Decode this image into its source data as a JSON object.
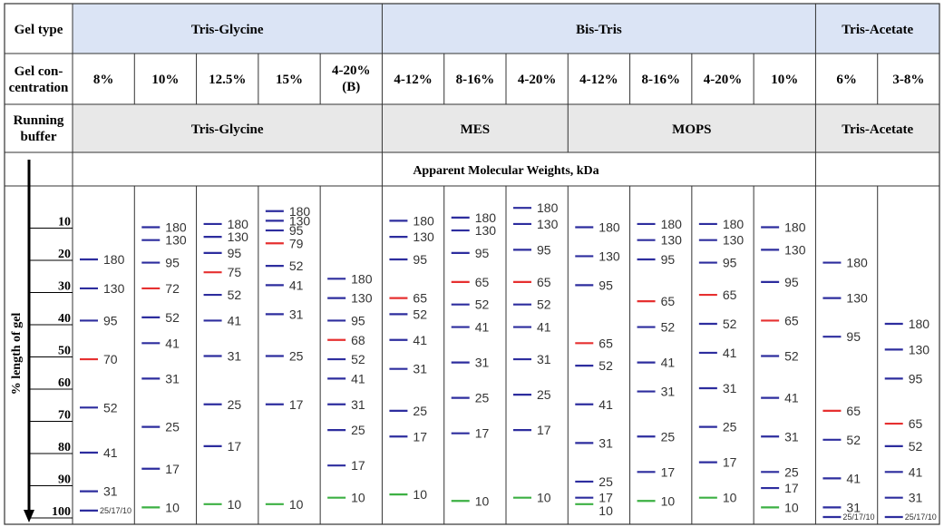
{
  "header": {
    "row_labels": {
      "gel_type": "Gel type",
      "gel_concentration_line1": "Gel con-",
      "gel_concentration_line2": "centration",
      "running_buffer_line1": "Running",
      "running_buffer_line2": "buffer"
    },
    "gel_types": [
      {
        "label": "Tris-Glycine",
        "span": [
          0,
          4
        ]
      },
      {
        "label": "Bis-Tris",
        "span": [
          5,
          11
        ]
      },
      {
        "label": "Tris-Acetate",
        "span": [
          12,
          13
        ]
      }
    ],
    "buffers": [
      {
        "label": "Tris-Glycine",
        "span": [
          0,
          4
        ]
      },
      {
        "label": "MES",
        "span": [
          5,
          7
        ]
      },
      {
        "label": "MOPS",
        "span": [
          8,
          11
        ]
      },
      {
        "label": "Tris-Acetate",
        "span": [
          12,
          13
        ]
      }
    ],
    "concentrations": [
      "8%",
      "10%",
      "12.5%",
      "15%",
      "4-20%|(B)",
      "4-12%",
      "8-16%",
      "4-20%",
      "4-12%",
      "8-16%",
      "4-20%",
      "10%",
      "6%",
      "3-8%"
    ],
    "mw_title": "Apparent Molecular Weights, kDa"
  },
  "axis": {
    "label": "% length of gel",
    "ticks": [
      10,
      20,
      30,
      40,
      50,
      60,
      70,
      80,
      90,
      100
    ]
  },
  "colors": {
    "header_blue": "#dbe4f5",
    "header_gray": "#e8e8e8",
    "band_blue": "#2d2d9e",
    "band_red": "#e63030",
    "band_green": "#3cb043",
    "grid": "#333333"
  },
  "lanes": [
    {
      "bands": [
        {
          "label": "180",
          "pos": 20,
          "color": "blue"
        },
        {
          "label": "130",
          "pos": 29,
          "color": "blue"
        },
        {
          "label": "95",
          "pos": 39,
          "color": "blue"
        },
        {
          "label": "70",
          "pos": 51,
          "color": "red"
        },
        {
          "label": "52",
          "pos": 66,
          "color": "blue"
        },
        {
          "label": "41",
          "pos": 80,
          "color": "blue"
        },
        {
          "label": "31",
          "pos": 92,
          "color": "blue"
        },
        {
          "label": "25/17/10",
          "pos": 98,
          "color": "blue",
          "small": true
        }
      ]
    },
    {
      "bands": [
        {
          "label": "180",
          "pos": 10,
          "color": "blue"
        },
        {
          "label": "130",
          "pos": 14,
          "color": "blue"
        },
        {
          "label": "95",
          "pos": 21,
          "color": "blue"
        },
        {
          "label": "72",
          "pos": 29,
          "color": "red"
        },
        {
          "label": "52",
          "pos": 38,
          "color": "blue"
        },
        {
          "label": "41",
          "pos": 46,
          "color": "blue"
        },
        {
          "label": "31",
          "pos": 57,
          "color": "blue"
        },
        {
          "label": "25",
          "pos": 72,
          "color": "blue"
        },
        {
          "label": "17",
          "pos": 85,
          "color": "blue"
        },
        {
          "label": "10",
          "pos": 97,
          "color": "green"
        }
      ]
    },
    {
      "bands": [
        {
          "label": "180",
          "pos": 9,
          "color": "blue"
        },
        {
          "label": "130",
          "pos": 13,
          "color": "blue"
        },
        {
          "label": "95",
          "pos": 18,
          "color": "blue"
        },
        {
          "label": "75",
          "pos": 24,
          "color": "red"
        },
        {
          "label": "52",
          "pos": 31,
          "color": "blue"
        },
        {
          "label": "41",
          "pos": 39,
          "color": "blue"
        },
        {
          "label": "31",
          "pos": 50,
          "color": "blue"
        },
        {
          "label": "25",
          "pos": 65,
          "color": "blue"
        },
        {
          "label": "17",
          "pos": 78,
          "color": "blue"
        },
        {
          "label": "10",
          "pos": 96,
          "color": "green"
        }
      ]
    },
    {
      "bands": [
        {
          "label": "180",
          "pos": 5,
          "color": "blue"
        },
        {
          "label": "130",
          "pos": 8,
          "color": "blue"
        },
        {
          "label": "95",
          "pos": 11,
          "color": "blue"
        },
        {
          "label": "79",
          "pos": 15,
          "color": "red"
        },
        {
          "label": "52",
          "pos": 22,
          "color": "blue"
        },
        {
          "label": "41",
          "pos": 28,
          "color": "blue"
        },
        {
          "label": "31",
          "pos": 37,
          "color": "blue"
        },
        {
          "label": "25",
          "pos": 50,
          "color": "blue"
        },
        {
          "label": "17",
          "pos": 65,
          "color": "blue"
        },
        {
          "label": "10",
          "pos": 96,
          "color": "green"
        }
      ]
    },
    {
      "bands": [
        {
          "label": "180",
          "pos": 26,
          "color": "blue"
        },
        {
          "label": "130",
          "pos": 32,
          "color": "blue"
        },
        {
          "label": "95",
          "pos": 39,
          "color": "blue"
        },
        {
          "label": "68",
          "pos": 45,
          "color": "red"
        },
        {
          "label": "52",
          "pos": 51,
          "color": "blue"
        },
        {
          "label": "41",
          "pos": 57,
          "color": "blue"
        },
        {
          "label": "31",
          "pos": 65,
          "color": "blue"
        },
        {
          "label": "25",
          "pos": 73,
          "color": "blue"
        },
        {
          "label": "17",
          "pos": 84,
          "color": "blue"
        },
        {
          "label": "10",
          "pos": 94,
          "color": "green"
        }
      ]
    },
    {
      "bands": [
        {
          "label": "180",
          "pos": 8,
          "color": "blue"
        },
        {
          "label": "130",
          "pos": 13,
          "color": "blue"
        },
        {
          "label": "95",
          "pos": 20,
          "color": "blue"
        },
        {
          "label": "65",
          "pos": 32,
          "color": "red"
        },
        {
          "label": "52",
          "pos": 37,
          "color": "blue"
        },
        {
          "label": "41",
          "pos": 45,
          "color": "blue"
        },
        {
          "label": "31",
          "pos": 54,
          "color": "blue"
        },
        {
          "label": "25",
          "pos": 67,
          "color": "blue"
        },
        {
          "label": "17",
          "pos": 75,
          "color": "blue"
        },
        {
          "label": "10",
          "pos": 93,
          "color": "green"
        }
      ]
    },
    {
      "bands": [
        {
          "label": "180",
          "pos": 7,
          "color": "blue"
        },
        {
          "label": "130",
          "pos": 11,
          "color": "blue"
        },
        {
          "label": "95",
          "pos": 18,
          "color": "blue"
        },
        {
          "label": "65",
          "pos": 27,
          "color": "red"
        },
        {
          "label": "52",
          "pos": 34,
          "color": "blue"
        },
        {
          "label": "41",
          "pos": 41,
          "color": "blue"
        },
        {
          "label": "31",
          "pos": 52,
          "color": "blue"
        },
        {
          "label": "25",
          "pos": 63,
          "color": "blue"
        },
        {
          "label": "17",
          "pos": 74,
          "color": "blue"
        },
        {
          "label": "10",
          "pos": 95,
          "color": "green"
        }
      ]
    },
    {
      "bands": [
        {
          "label": "180",
          "pos": 4,
          "color": "blue"
        },
        {
          "label": "130",
          "pos": 9,
          "color": "blue"
        },
        {
          "label": "95",
          "pos": 17,
          "color": "blue"
        },
        {
          "label": "65",
          "pos": 27,
          "color": "red"
        },
        {
          "label": "52",
          "pos": 34,
          "color": "blue"
        },
        {
          "label": "41",
          "pos": 41,
          "color": "blue"
        },
        {
          "label": "31",
          "pos": 51,
          "color": "blue"
        },
        {
          "label": "25",
          "pos": 62,
          "color": "blue"
        },
        {
          "label": "17",
          "pos": 73,
          "color": "blue"
        },
        {
          "label": "10",
          "pos": 94,
          "color": "green"
        }
      ]
    },
    {
      "bands": [
        {
          "label": "180",
          "pos": 10,
          "color": "blue"
        },
        {
          "label": "130",
          "pos": 19,
          "color": "blue"
        },
        {
          "label": "95",
          "pos": 28,
          "color": "blue"
        },
        {
          "label": "65",
          "pos": 46,
          "color": "red"
        },
        {
          "label": "52",
          "pos": 53,
          "color": "blue"
        },
        {
          "label": "41",
          "pos": 65,
          "color": "blue"
        },
        {
          "label": "31",
          "pos": 77,
          "color": "blue"
        },
        {
          "label": "25",
          "pos": 89,
          "color": "blue"
        },
        {
          "label": "17",
          "pos": 94,
          "color": "blue"
        },
        {
          "label": "10",
          "pos": 96,
          "color": "green",
          "label_below": true
        }
      ]
    },
    {
      "bands": [
        {
          "label": "180",
          "pos": 9,
          "color": "blue"
        },
        {
          "label": "130",
          "pos": 14,
          "color": "blue"
        },
        {
          "label": "95",
          "pos": 20,
          "color": "blue"
        },
        {
          "label": "65",
          "pos": 33,
          "color": "red"
        },
        {
          "label": "52",
          "pos": 41,
          "color": "blue"
        },
        {
          "label": "41",
          "pos": 52,
          "color": "blue"
        },
        {
          "label": "31",
          "pos": 61,
          "color": "blue"
        },
        {
          "label": "25",
          "pos": 75,
          "color": "blue"
        },
        {
          "label": "17",
          "pos": 86,
          "color": "blue"
        },
        {
          "label": "10",
          "pos": 95,
          "color": "green"
        }
      ]
    },
    {
      "bands": [
        {
          "label": "180",
          "pos": 9,
          "color": "blue"
        },
        {
          "label": "130",
          "pos": 14,
          "color": "blue"
        },
        {
          "label": "95",
          "pos": 21,
          "color": "blue"
        },
        {
          "label": "65",
          "pos": 31,
          "color": "red"
        },
        {
          "label": "52",
          "pos": 40,
          "color": "blue"
        },
        {
          "label": "41",
          "pos": 49,
          "color": "blue"
        },
        {
          "label": "31",
          "pos": 60,
          "color": "blue"
        },
        {
          "label": "25",
          "pos": 72,
          "color": "blue"
        },
        {
          "label": "17",
          "pos": 83,
          "color": "blue"
        },
        {
          "label": "10",
          "pos": 94,
          "color": "green"
        }
      ]
    },
    {
      "bands": [
        {
          "label": "180",
          "pos": 10,
          "color": "blue"
        },
        {
          "label": "130",
          "pos": 17,
          "color": "blue"
        },
        {
          "label": "95",
          "pos": 27,
          "color": "blue"
        },
        {
          "label": "65",
          "pos": 39,
          "color": "red"
        },
        {
          "label": "52",
          "pos": 50,
          "color": "blue"
        },
        {
          "label": "41",
          "pos": 63,
          "color": "blue"
        },
        {
          "label": "31",
          "pos": 75,
          "color": "blue"
        },
        {
          "label": "25",
          "pos": 86,
          "color": "blue"
        },
        {
          "label": "17",
          "pos": 91,
          "color": "blue"
        },
        {
          "label": "10",
          "pos": 97,
          "color": "green"
        }
      ]
    },
    {
      "bands": [
        {
          "label": "180",
          "pos": 21,
          "color": "blue"
        },
        {
          "label": "130",
          "pos": 32,
          "color": "blue"
        },
        {
          "label": "95",
          "pos": 44,
          "color": "blue"
        },
        {
          "label": "65",
          "pos": 67,
          "color": "red"
        },
        {
          "label": "52",
          "pos": 76,
          "color": "blue"
        },
        {
          "label": "41",
          "pos": 88,
          "color": "blue"
        },
        {
          "label": "31",
          "pos": 97,
          "color": "blue"
        },
        {
          "label": "25/17/10",
          "pos": 100,
          "color": "blue",
          "small": true
        }
      ]
    },
    {
      "bands": [
        {
          "label": "180",
          "pos": 40,
          "color": "blue"
        },
        {
          "label": "130",
          "pos": 48,
          "color": "blue"
        },
        {
          "label": "95",
          "pos": 57,
          "color": "blue"
        },
        {
          "label": "65",
          "pos": 71,
          "color": "red"
        },
        {
          "label": "52",
          "pos": 78,
          "color": "blue"
        },
        {
          "label": "41",
          "pos": 86,
          "color": "blue"
        },
        {
          "label": "31",
          "pos": 94,
          "color": "blue"
        },
        {
          "label": "25/17/10",
          "pos": 100,
          "color": "blue",
          "small": true
        }
      ]
    }
  ]
}
